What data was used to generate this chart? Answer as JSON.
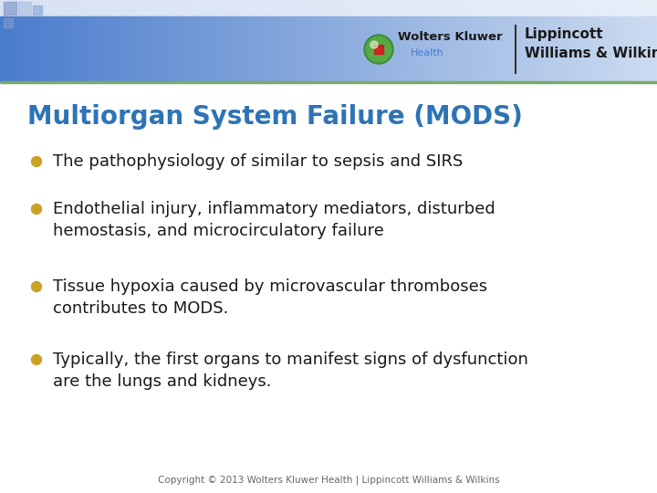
{
  "title": "Multiorgan System Failure (MODS)",
  "title_color": "#2E74B5",
  "bullet_color": "#C9A227",
  "text_color": "#1a1a1a",
  "bullets": [
    "The pathophysiology of similar to sepsis and SIRS",
    "Endothelial injury, inflammatory mediators, disturbed\nhemostasis, and microcirculatory failure",
    "Tissue hypoxia caused by microvascular thromboses\ncontributes to MODS.",
    "Typically, the first organs to manifest signs of dysfunction\nare the lungs and kidneys."
  ],
  "footer": "Copyright © 2013 Wolters Kluwer Health | Lippincott Williams & Wilkins",
  "footer_color": "#666666",
  "separator_line_color": "#7aaa6a",
  "bg_color": "#ffffff",
  "header_top_strip_color": "#c8d4ee",
  "header_main_left": "#4878cc",
  "header_main_right": "#b8cce8",
  "wk_text": "Wolters Kluwer",
  "health_text": "Health",
  "lww_text": "Lippincott\nWilliams & Wilkins"
}
